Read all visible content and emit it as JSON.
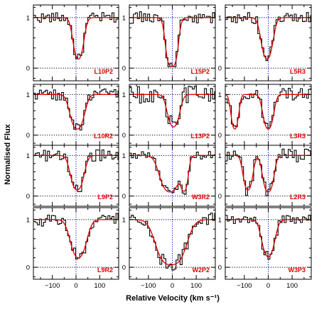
{
  "chart_data": {
    "type": "line",
    "xlabel": "Relative Velocity (km s⁻¹)",
    "ylabel": "Normalised Flux",
    "xlim": [
      -180,
      180
    ],
    "ylim": [
      -0.25,
      1.25
    ],
    "xticks": [
      -100,
      0,
      100
    ],
    "yticks": [
      0,
      1
    ],
    "grid": false,
    "reference_lines": {
      "vertical_x": 0,
      "horizontal_y": [
        0,
        1
      ]
    },
    "colors": {
      "data": "#000000",
      "model": "#e00000",
      "reference": "#0000cc"
    },
    "panels": [
      {
        "label": "L10P2",
        "row": 0,
        "col": 0,
        "components": [
          {
            "v": 10,
            "depth": 0.82,
            "width": 23
          }
        ],
        "scatter": 0.1
      },
      {
        "label": "L15P2",
        "row": 0,
        "col": 1,
        "components": [
          {
            "v": -2,
            "depth": 0.97,
            "width": 22
          }
        ],
        "scatter": 0.12
      },
      {
        "label": "L5R3",
        "row": 0,
        "col": 2,
        "components": [
          {
            "v": -5,
            "depth": 0.82,
            "width": 25
          }
        ],
        "scatter": 0.1
      },
      {
        "label": "L10R2",
        "row": 1,
        "col": 0,
        "components": [
          {
            "v": 5,
            "depth": 0.85,
            "width": 30
          }
        ],
        "scatter": 0.14
      },
      {
        "label": "L13P2",
        "row": 1,
        "col": 1,
        "components": [
          {
            "v": 5,
            "depth": 0.8,
            "width": 26
          }
        ],
        "scatter": 0.22
      },
      {
        "label": "L3R3",
        "row": 1,
        "col": 2,
        "components": [
          {
            "v": -140,
            "depth": 0.85,
            "width": 16
          },
          {
            "v": 0,
            "depth": 0.85,
            "width": 22
          }
        ],
        "scatter": 0.16
      },
      {
        "label": "L9P2",
        "row": 2,
        "col": 0,
        "components": [
          {
            "v": 5,
            "depth": 0.85,
            "width": 28
          }
        ],
        "scatter": 0.14
      },
      {
        "label": "W3R2",
        "row": 2,
        "col": 1,
        "components": [
          {
            "v": -10,
            "depth": 0.9,
            "width": 40
          },
          {
            "v": 50,
            "depth": 0.85,
            "width": 16
          }
        ],
        "scatter": 0.1
      },
      {
        "label": "L2R3",
        "row": 2,
        "col": 2,
        "components": [
          {
            "v": -85,
            "depth": 0.85,
            "width": 20
          },
          {
            "v": 0,
            "depth": 0.9,
            "width": 22
          }
        ],
        "scatter": 0.16
      },
      {
        "label": "L9R2",
        "row": 3,
        "col": 0,
        "components": [
          {
            "v": 10,
            "depth": 0.8,
            "width": 35
          }
        ],
        "scatter": 0.14
      },
      {
        "label": "W2P2",
        "row": 3,
        "col": 1,
        "components": [
          {
            "v": -5,
            "depth": 0.95,
            "width": 55
          }
        ],
        "scatter": 0.15
      },
      {
        "label": "W3P3",
        "row": 3,
        "col": 2,
        "components": [
          {
            "v": 0,
            "depth": 0.78,
            "width": 28
          }
        ],
        "scatter": 0.1
      }
    ]
  }
}
